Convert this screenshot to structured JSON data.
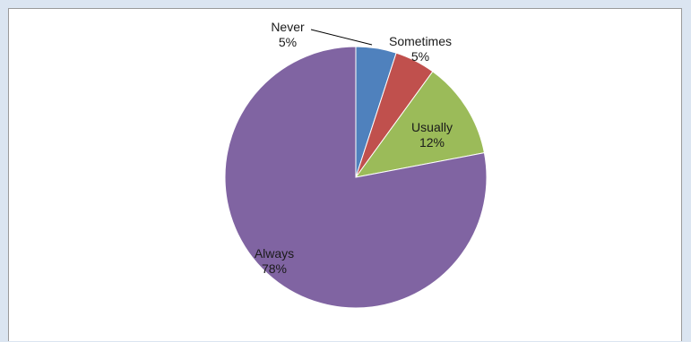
{
  "chart_data": {
    "type": "pie",
    "slices": [
      {
        "label": "Never",
        "percent_label": "5%",
        "value": 5,
        "color": "#4f81bd"
      },
      {
        "label": "Sometimes",
        "percent_label": "5%",
        "value": 5,
        "color": "#c0504d"
      },
      {
        "label": "Usually",
        "percent_label": "12%",
        "value": 12,
        "color": "#9bbb59"
      },
      {
        "label": "Always",
        "percent_label": "78%",
        "value": 78,
        "color": "#8064a2"
      }
    ],
    "start_angle_deg": 0,
    "direction": "clockwise",
    "legend": "none",
    "label_style": "category and percent on slice"
  }
}
